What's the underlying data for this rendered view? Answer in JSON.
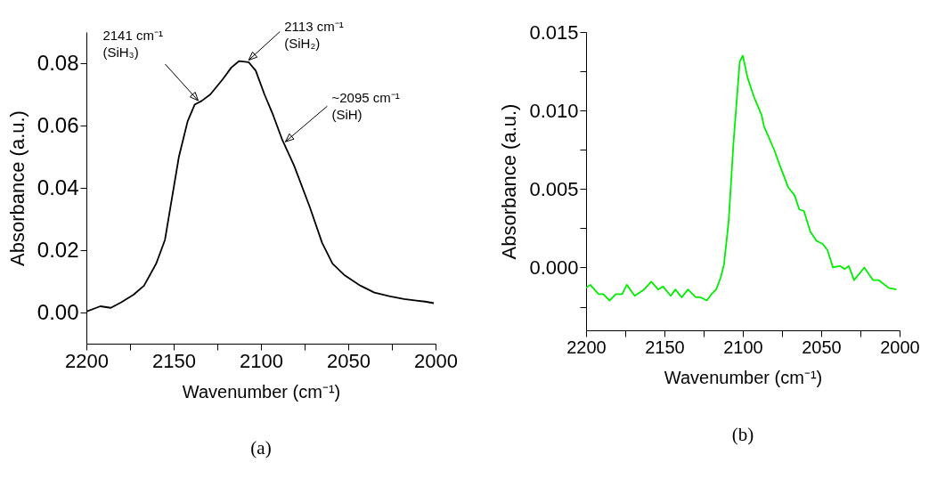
{
  "chart_data": [
    {
      "type": "line",
      "xlabel": "Wavenumber (cm⁻¹)",
      "ylabel": "Absorbance (a.u.)",
      "xlim": [
        2200,
        2000
      ],
      "xticks": [
        2200,
        {
          "value": 2175,
          "label": null
        },
        2150,
        {
          "value": 2125,
          "label": null
        },
        2100,
        {
          "value": 2075,
          "label": null
        },
        2050,
        {
          "value": 2025,
          "label": null
        },
        2000
      ],
      "ylim": [
        -0.01,
        0.09
      ],
      "yticks": [
        {
          "value": 0,
          "label": "0.00"
        },
        0.02,
        0.04,
        0.06,
        0.08
      ],
      "series": [
        {
          "color": "#000000",
          "x": [
            2200,
            2192,
            2186,
            2180,
            2173,
            2167,
            2160,
            2155,
            2151,
            2147,
            2142,
            2138,
            2134,
            2129,
            2122,
            2117,
            2112.5,
            2107,
            2103,
            2098,
            2093,
            2088,
            2081,
            2072,
            2065,
            2059,
            2052,
            2043,
            2035,
            2026,
            2018,
            2011,
            2006,
            2001
          ],
          "values": [
            0.0003,
            0.002,
            0.0015,
            0.0033,
            0.0057,
            0.0086,
            0.0157,
            0.0233,
            0.0367,
            0.05,
            0.0614,
            0.0667,
            0.0679,
            0.07,
            0.0748,
            0.0786,
            0.0807,
            0.0803,
            0.0776,
            0.07,
            0.0633,
            0.0557,
            0.0471,
            0.0338,
            0.0224,
            0.0157,
            0.0119,
            0.0086,
            0.0064,
            0.0052,
            0.0043,
            0.0038,
            0.0035,
            0.003
          ]
        }
      ],
      "annotations": [
        {
          "text": "2141 cm⁻¹\n(SiH₃)",
          "x": 2136,
          "y": 0.068
        },
        {
          "text": "2113 cm⁻¹\n(SiH₂)",
          "x": 2107,
          "y": 0.081
        },
        {
          "text": "~2095 cm⁻¹\n(SiH)",
          "x": 2086,
          "y": 0.0548
        },
        "(a)"
      ]
    },
    {
      "type": "line",
      "xlabel": "Wavenumber (cm⁻¹)",
      "ylabel": "Absorbance (a.u.)",
      "xlim": [
        2200,
        2000
      ],
      "xticks": [
        2200,
        {
          "value": 2175,
          "label": null
        },
        2150,
        {
          "value": 2125,
          "label": null
        },
        2100,
        {
          "value": 2075,
          "label": null
        },
        2050,
        {
          "value": 2025,
          "label": null
        },
        2000
      ],
      "ylim": [
        -0.004,
        0.015
      ],
      "yticks": [
        {
          "value": -0.0025,
          "label": null
        },
        {
          "value": 0,
          "label": "0.000"
        },
        {
          "value": 0.0025,
          "label": null
        },
        0.005,
        {
          "value": 0.0075,
          "label": null
        },
        {
          "value": 0.01,
          "label": "0.010"
        },
        {
          "value": 0.0125,
          "label": null
        },
        0.015
      ],
      "series": [
        {
          "color": "#00ee00",
          "x": [
            2200,
            2197.3,
            2192,
            2189,
            2185,
            2181,
            2177,
            2174,
            2169,
            2163,
            2158.4,
            2154,
            2151,
            2146,
            2143,
            2139,
            2135,
            2130,
            2127,
            2123,
            2120,
            2117,
            2114,
            2112,
            2109,
            2106,
            2102,
            2100,
            2097,
            2093,
            2088,
            2086.5,
            2080,
            2076,
            2071,
            2067,
            2064,
            2061,
            2057,
            2053,
            2049,
            2046,
            2042.5,
            2038,
            2035,
            2032.4,
            2029,
            2022.5,
            2017,
            2013.4,
            2007,
            2002
          ],
          "values": [
            -0.0013,
            -0.0011,
            -0.0017,
            -0.0017,
            -0.0021,
            -0.0017,
            -0.0017,
            -0.0011,
            -0.0018,
            -0.0014,
            -0.0009,
            -0.0014,
            -0.0012,
            -0.0018,
            -0.0014,
            -0.0019,
            -0.0014,
            -0.0019,
            -0.0019,
            -0.0021,
            -0.0017,
            -0.0014,
            -0.0006,
            0.0002,
            0.003,
            0.0079,
            0.0131,
            0.0135,
            0.0121,
            0.0109,
            0.0097,
            0.009,
            0.0075,
            0.0064,
            0.0051,
            0.0046,
            0.0037,
            0.0036,
            0.0023,
            0.0017,
            0.0015,
            0.0011,
            0,
            0.0001,
            -0.0001,
            0.0001,
            -0.0008,
            0,
            -0.0008,
            -0.0008,
            -0.0013,
            -0.0014
          ]
        }
      ],
      "annotations": [
        "(b)"
      ]
    }
  ]
}
